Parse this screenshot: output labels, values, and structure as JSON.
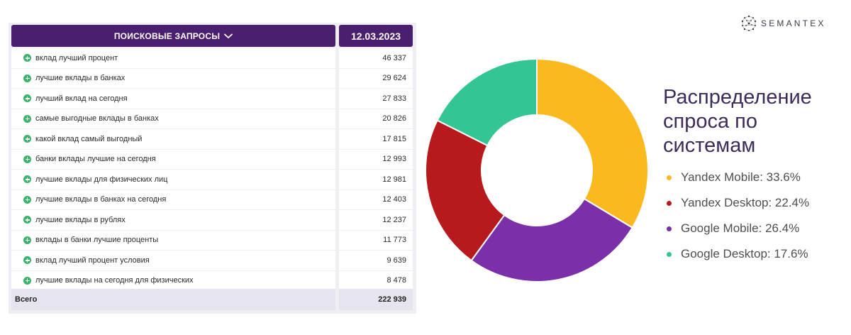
{
  "logo": {
    "text": "SEMANTEX"
  },
  "table": {
    "header_query": "ПОИСКОВЫЕ ЗАПРОСЫ",
    "header_date": "12.03.2023",
    "rows": [
      {
        "query": "вклад лучший процент",
        "value": "46 337"
      },
      {
        "query": "лучшие вклады в банках",
        "value": "29 624"
      },
      {
        "query": "лучший вклад на сегодня",
        "value": "27 833"
      },
      {
        "query": "самые выгодные вклады в банках",
        "value": "20 826"
      },
      {
        "query": "какой вклад самый выгодный",
        "value": "17 815"
      },
      {
        "query": "банки вклады лучшие на сегодня",
        "value": "12 993"
      },
      {
        "query": "лучшие вклады для физических лиц",
        "value": "12 981"
      },
      {
        "query": "лучшие вклады в банках на сегодня",
        "value": "12 403"
      },
      {
        "query": "лучшие вклады в рублях",
        "value": "12 237"
      },
      {
        "query": "вклады в банки лучшие проценты",
        "value": "11 773"
      },
      {
        "query": "вклад лучший процент условия",
        "value": "9 639"
      },
      {
        "query": "лучшие вклады на сегодня для физических",
        "value": "8 478"
      }
    ],
    "total_label": "Всего",
    "total_value": "222 939"
  },
  "chart_data": {
    "type": "pie",
    "title_lines": [
      "Распределение",
      "спроса по",
      "системам"
    ],
    "categories": [
      "Yandex Mobile",
      "Yandex Desktop",
      "Google Mobile",
      "Google Desktop"
    ],
    "values": [
      33.6,
      22.4,
      26.4,
      17.6
    ],
    "legend_labels": [
      "Yandex Mobile: 33.6%",
      "Google Mobile: 26.4%",
      "Yandex Desktop: 22.4%",
      "Google Desktop: 17.6%"
    ],
    "legend_order": [
      "Yandex Mobile",
      "Yandex Desktop",
      "Google Mobile",
      "Google Desktop"
    ],
    "colors": {
      "Yandex Mobile": "#fbb91f",
      "Google Mobile": "#7b2fa8",
      "Yandex Desktop": "#b8191d",
      "Google Desktop": "#34c595"
    },
    "slice_order": [
      "Yandex Mobile",
      "Google Mobile",
      "Yandex Desktop",
      "Google Desktop"
    ],
    "donut": true,
    "legend_position": "right"
  }
}
